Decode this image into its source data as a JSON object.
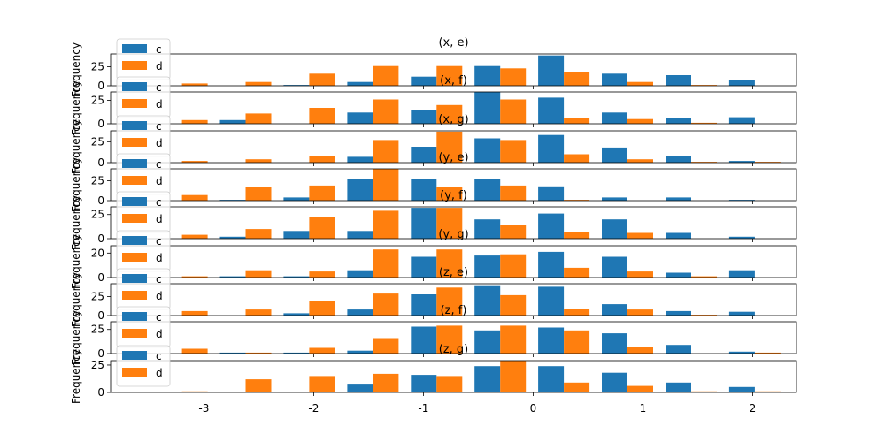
{
  "chart_data": {
    "type": "bar",
    "colors": {
      "c": "#1f77b4",
      "d": "#ff7f0e"
    },
    "xticks": [
      -3,
      -2,
      -1,
      0,
      1,
      2
    ],
    "xlim": [
      -3.85,
      2.4
    ],
    "bin_centers": [
      -3.2,
      -2.62,
      -2.04,
      -1.46,
      -0.88,
      -0.3,
      0.28,
      0.86,
      1.44,
      2.02
    ],
    "ylabel": "Frequency",
    "legend": [
      "c",
      "d"
    ],
    "legend_position": "upper-left",
    "panels": [
      {
        "title": "(x, e)",
        "ylim": [
          0,
          42
        ],
        "yticks": [
          0,
          25
        ],
        "series": [
          {
            "name": "c",
            "values": [
              0,
              0,
              1,
              5,
              12,
              26,
              40,
              16,
              14,
              7
            ]
          },
          {
            "name": "d",
            "values": [
              3,
              5,
              16,
              26,
              26,
              23,
              18,
              5,
              1,
              0
            ]
          }
        ]
      },
      {
        "title": "(x, f)",
        "ylim": [
          0,
          34
        ],
        "yticks": [
          0,
          25
        ],
        "series": [
          {
            "name": "c",
            "values": [
              0,
              4,
              0,
              12,
              15,
              34,
              28,
              12,
              6,
              7
            ]
          },
          {
            "name": "d",
            "values": [
              4,
              11,
              17,
              26,
              20,
              26,
              6,
              5,
              1,
              0
            ]
          }
        ]
      },
      {
        "title": "(x, g)",
        "ylim": [
          0,
          38
        ],
        "yticks": [
          0,
          25
        ],
        "series": [
          {
            "name": "c",
            "values": [
              0,
              0,
              0,
              7,
              19,
              29,
              33,
              18,
              8,
              2
            ]
          },
          {
            "name": "d",
            "values": [
              2,
              4,
              8,
              27,
              37,
              27,
              10,
              4,
              1,
              1
            ]
          }
        ]
      },
      {
        "title": "(y, e)",
        "ylim": [
          0,
          40
        ],
        "yticks": [
          0,
          25
        ],
        "series": [
          {
            "name": "c",
            "values": [
              0,
              1,
              4,
              27,
              27,
              27,
              18,
              4,
              4,
              1
            ]
          },
          {
            "name": "d",
            "values": [
              7,
              17,
              19,
              40,
              17,
              19,
              1,
              0,
              0,
              0
            ]
          }
        ]
      },
      {
        "title": "(y, f)",
        "ylim": [
          0,
          33
        ],
        "yticks": [
          0,
          25
        ],
        "series": [
          {
            "name": "c",
            "values": [
              0,
              2,
              8,
              8,
              32,
              20,
              26,
              20,
              6,
              2
            ]
          },
          {
            "name": "d",
            "values": [
              4,
              10,
              22,
              29,
              32,
              14,
              7,
              6,
              0,
              0
            ]
          }
        ]
      },
      {
        "title": "(y, g)",
        "ylim": [
          0,
          26
        ],
        "yticks": [
          0,
          20
        ],
        "series": [
          {
            "name": "c",
            "values": [
              0,
              1,
              1,
              6,
              17,
              18,
              21,
              17,
              4,
              6
            ]
          },
          {
            "name": "d",
            "values": [
              1,
              6,
              5,
              23,
              23,
              19,
              8,
              5,
              1,
              0
            ]
          }
        ]
      },
      {
        "title": "(z, e)",
        "ylim": [
          0,
          42
        ],
        "yticks": [
          0,
          25
        ],
        "series": [
          {
            "name": "c",
            "values": [
              0,
              0,
              3,
              8,
              28,
              40,
              38,
              15,
              6,
              5
            ]
          },
          {
            "name": "d",
            "values": [
              6,
              8,
              19,
              29,
              37,
              27,
              9,
              8,
              1,
              0
            ]
          }
        ]
      },
      {
        "title": "(z, f)",
        "ylim": [
          0,
          33
        ],
        "yticks": [
          0,
          25
        ],
        "series": [
          {
            "name": "c",
            "values": [
              0,
              1,
              1,
              3,
              28,
              24,
              27,
              21,
              9,
              2
            ]
          },
          {
            "name": "d",
            "values": [
              5,
              1,
              6,
              16,
              29,
              29,
              24,
              7,
              0,
              1
            ]
          }
        ]
      },
      {
        "title": "(z, g)",
        "ylim": [
          0,
          29
        ],
        "yticks": [
          0,
          25
        ],
        "series": [
          {
            "name": "c",
            "values": [
              0,
              0,
              0,
              8,
              16,
              24,
              24,
              18,
              9,
              5
            ]
          },
          {
            "name": "d",
            "values": [
              1,
              12,
              15,
              17,
              15,
              29,
              9,
              6,
              1,
              1
            ]
          }
        ]
      }
    ]
  }
}
